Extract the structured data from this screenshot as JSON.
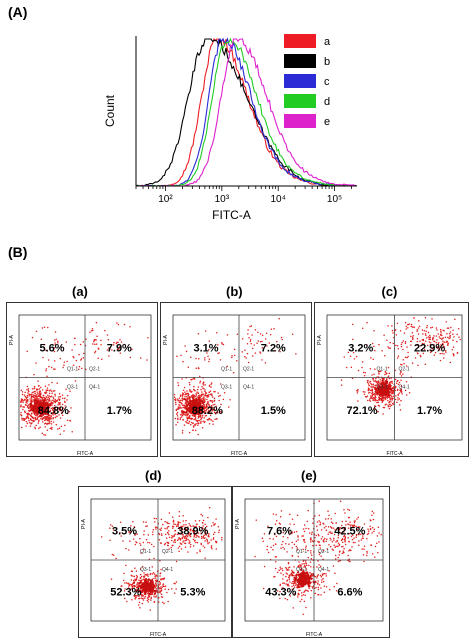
{
  "figure": {
    "section_a_label": "(A)",
    "section_b_label": "(B)"
  },
  "chart_data": [
    {
      "type": "line",
      "xlabel": "FITC-A",
      "ylabel": "Count",
      "xscale": "log",
      "xlim": [
        30,
        250000
      ],
      "xticks": [
        {
          "value": 100,
          "label": "10²"
        },
        {
          "value": 1000,
          "label": "10³"
        },
        {
          "value": 10000,
          "label": "10⁴"
        },
        {
          "value": 100000,
          "label": "10⁵"
        }
      ],
      "legend_placement": "right",
      "series": [
        {
          "name": "a",
          "color": "#ee1c25",
          "peak": 820,
          "width": 0.27
        },
        {
          "name": "b",
          "color": "#000000",
          "peak": 560,
          "width": 0.34
        },
        {
          "name": "c",
          "color": "#2b2bd6",
          "peak": 1050,
          "width": 0.25
        },
        {
          "name": "d",
          "color": "#22cc22",
          "peak": 1250,
          "width": 0.26
        },
        {
          "name": "e",
          "color": "#dd22cc",
          "peak": 1800,
          "width": 0.27
        }
      ]
    },
    {
      "type": "scatter",
      "title": "(a)",
      "xlabel": "FITC-A",
      "ylabel": "PI-A",
      "gate_labels": [
        "Q1-1",
        "Q2-1",
        "Q3-1",
        "Q4-1"
      ],
      "quadrants": {
        "upper_left": "5.6%",
        "upper_right": "7.9%",
        "lower_left": "84.8%",
        "lower_right": "1.7%"
      }
    },
    {
      "type": "scatter",
      "title": "(b)",
      "xlabel": "FITC-A",
      "ylabel": "PI-A",
      "gate_labels": [
        "Q1-1",
        "Q2-1",
        "Q3-1",
        "Q4-1"
      ],
      "quadrants": {
        "upper_left": "3.1%",
        "upper_right": "7.2%",
        "lower_left": "88.2%",
        "lower_right": "1.5%"
      }
    },
    {
      "type": "scatter",
      "title": "(c)",
      "xlabel": "FITC-A",
      "ylabel": "PI-A",
      "gate_labels": [
        "Q1-1",
        "Q2-1",
        "Q3-1",
        "Q4-1"
      ],
      "quadrants": {
        "upper_left": "3.2%",
        "upper_right": "22.9%",
        "lower_left": "72.1%",
        "lower_right": "1.7%"
      }
    },
    {
      "type": "scatter",
      "title": "(d)",
      "xlabel": "FITC-A",
      "ylabel": "PI-A",
      "gate_labels": [
        "Q1-1",
        "Q2-1",
        "Q3-1",
        "Q4-1"
      ],
      "quadrants": {
        "upper_left": "3.5%",
        "upper_right": "38.9%",
        "lower_left": "52.3%",
        "lower_right": "5.3%"
      }
    },
    {
      "type": "scatter",
      "title": "(e)",
      "xlabel": "FITC-A",
      "ylabel": "PI-A",
      "gate_labels": [
        "Q1-1",
        "Q2-1",
        "Q3-1",
        "Q4-1"
      ],
      "quadrants": {
        "upper_left": "7.6%",
        "upper_right": "42.5%",
        "lower_left": "43.3%",
        "lower_right": "6.6%"
      }
    }
  ]
}
